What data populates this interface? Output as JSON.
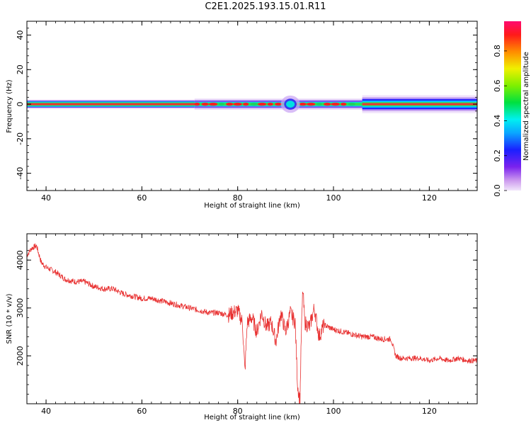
{
  "title": "C2E1.2025.193.15.01.R11",
  "colors": {
    "snr_line": "#e83030",
    "axes": "#000000"
  },
  "chart_data": [
    {
      "type": "heatmap",
      "xlabel": "Height of straight line (km)",
      "ylabel": "Frequency (Hz)",
      "xlim": [
        36,
        130
      ],
      "ylim": [
        -50,
        48
      ],
      "xticks": [
        40,
        60,
        80,
        100,
        120
      ],
      "yticks": [
        -40,
        -20,
        0,
        20,
        40
      ],
      "colorbar": {
        "label": "Normalized spectral amplitude",
        "range": [
          0.0,
          0.97
        ],
        "ticks": [
          0.0,
          0.2,
          0.4,
          0.6,
          0.8
        ],
        "colormap": "rainbow (purple→blue→cyan→green→yellow→red→magenta)"
      },
      "band_center_hz": 0,
      "band_features": [
        {
          "x_range": [
            36,
            71
          ],
          "half_width_hz": 2,
          "center_level": 0.92
        },
        {
          "x_range": [
            71,
            106
          ],
          "half_width_hz": 3,
          "center_level": "alternating red/green blobs"
        },
        {
          "x": 91,
          "half_width_hz": 5,
          "center_level": 0.45
        },
        {
          "x_range": [
            106,
            130
          ],
          "half_width_hz": 4,
          "center_level": 0.95
        }
      ]
    },
    {
      "type": "line",
      "xlabel": "Height of straight line (km)",
      "ylabel": "SNR (10 * v/v)",
      "xlim": [
        36,
        130
      ],
      "ylim": [
        1000,
        4550
      ],
      "xticks": [
        40,
        60,
        80,
        100,
        120
      ],
      "yticks": [
        2000,
        3000,
        4000
      ],
      "series": [
        {
          "x": [
            36,
            37,
            38,
            39,
            40,
            42,
            44,
            46,
            48,
            50,
            52,
            54,
            56,
            58,
            60,
            62,
            64,
            66,
            68,
            70,
            72,
            74,
            76,
            78,
            80,
            81,
            81.5,
            82,
            83,
            84,
            85,
            86,
            87,
            88,
            89,
            90,
            91,
            92,
            92.5,
            93,
            93.3,
            93.6,
            94,
            95,
            96,
            97,
            98,
            100,
            102,
            104,
            106,
            108,
            110,
            112,
            113,
            114,
            116,
            118,
            120,
            122,
            124,
            126,
            128,
            130
          ],
          "y": [
            4100,
            4250,
            4300,
            3950,
            3850,
            3750,
            3600,
            3550,
            3550,
            3450,
            3400,
            3400,
            3300,
            3250,
            3200,
            3200,
            3150,
            3100,
            3050,
            3000,
            2950,
            2900,
            2900,
            2850,
            2950,
            2700,
            1650,
            2700,
            2800,
            2500,
            2900,
            2600,
            2700,
            2300,
            2900,
            2500,
            2900,
            2700,
            1400,
            1050,
            2500,
            3400,
            2700,
            2600,
            3000,
            2400,
            2650,
            2550,
            2500,
            2450,
            2400,
            2400,
            2350,
            2350,
            2000,
            1950,
            1950,
            1950,
            1900,
            1950,
            1900,
            1950,
            1900,
            1900
          ]
        }
      ]
    }
  ]
}
